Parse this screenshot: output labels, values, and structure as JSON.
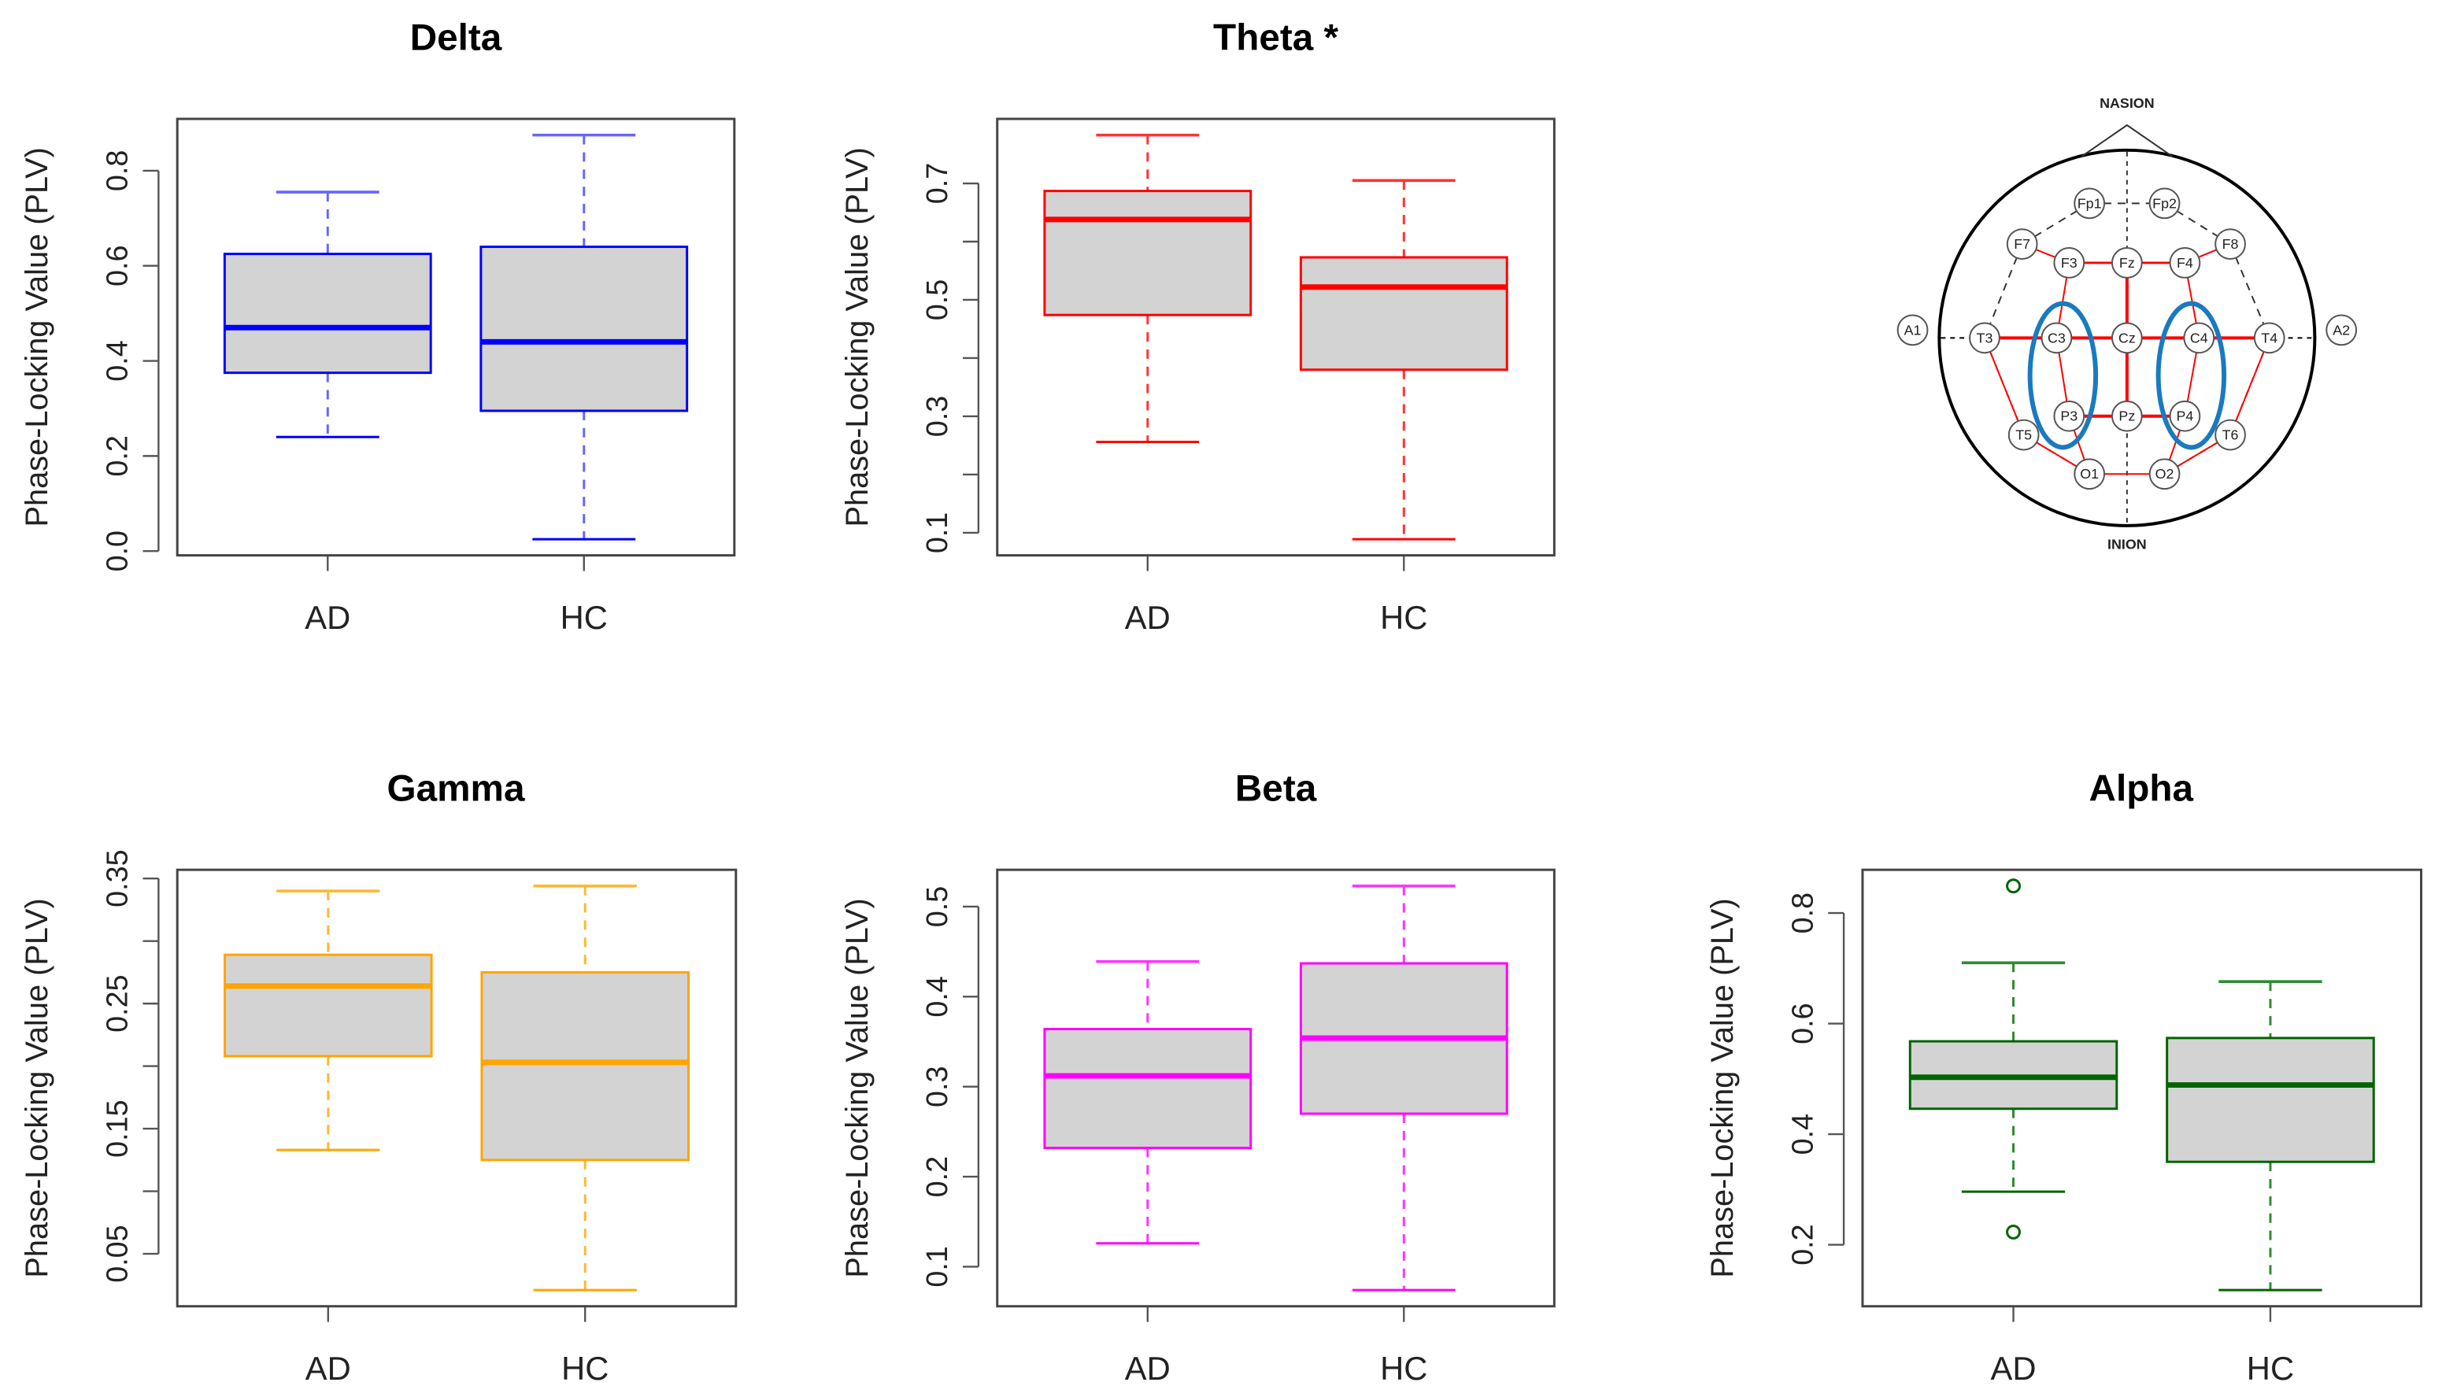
{
  "chart_data": [
    {
      "type": "box",
      "title": "Delta",
      "ylabel": "Phase-Locking Value (PLV)",
      "color": "#0000ff",
      "whisker_color": "#6666ff",
      "categories": [
        "AD",
        "HC"
      ],
      "yticks": [
        0.0,
        0.2,
        0.4,
        0.6,
        0.8
      ],
      "ytick_labels": [
        "0.0",
        "0.2",
        "0.4",
        "0.6",
        "0.8"
      ],
      "boxes": [
        {
          "min": 0.24,
          "q1": 0.375,
          "median": 0.47,
          "q3": 0.625,
          "max": 0.755,
          "outliers": []
        },
        {
          "min": 0.025,
          "q1": 0.295,
          "median": 0.44,
          "q3": 0.64,
          "max": 0.875,
          "outliers": []
        }
      ]
    },
    {
      "type": "box",
      "title": "Theta *",
      "ylabel": "Phase-Locking Value (PLV)",
      "color": "#ff0000",
      "whisker_color": "#ff3333",
      "categories": [
        "AD",
        "HC"
      ],
      "yticks": [
        0.1,
        0.2,
        0.3,
        0.4,
        0.5,
        0.6,
        0.7
      ],
      "ytick_labels": [
        "0.1",
        "",
        "0.3",
        "",
        "0.5",
        "",
        "0.7"
      ],
      "boxes": [
        {
          "min": 0.256,
          "q1": 0.474,
          "median": 0.638,
          "q3": 0.687,
          "max": 0.783,
          "outliers": []
        },
        {
          "min": 0.089,
          "q1": 0.38,
          "median": 0.522,
          "q3": 0.573,
          "max": 0.705,
          "outliers": []
        }
      ]
    },
    {
      "type": "box",
      "title": "Gamma",
      "ylabel": "Phase-Locking Value (PLV)",
      "color": "#ffa500",
      "whisker_color": "#ffb733",
      "categories": [
        "AD",
        "HC"
      ],
      "yticks": [
        0.05,
        0.1,
        0.15,
        0.2,
        0.25,
        0.3,
        0.35
      ],
      "ytick_labels": [
        "0.05",
        "",
        "0.15",
        "",
        "0.25",
        "",
        "0.35"
      ],
      "boxes": [
        {
          "min": 0.133,
          "q1": 0.208,
          "median": 0.264,
          "q3": 0.289,
          "max": 0.34,
          "outliers": []
        },
        {
          "min": 0.021,
          "q1": 0.125,
          "median": 0.203,
          "q3": 0.275,
          "max": 0.344,
          "outliers": []
        }
      ]
    },
    {
      "type": "box",
      "title": "Beta",
      "ylabel": "Phase-Locking Value (PLV)",
      "color": "#ff00ff",
      "whisker_color": "#ff33ff",
      "categories": [
        "AD",
        "HC"
      ],
      "yticks": [
        0.1,
        0.2,
        0.3,
        0.4,
        0.5
      ],
      "ytick_labels": [
        "0.1",
        "0.2",
        "0.3",
        "0.4",
        "0.5"
      ],
      "boxes": [
        {
          "min": 0.126,
          "q1": 0.232,
          "median": 0.312,
          "q3": 0.364,
          "max": 0.439,
          "outliers": []
        },
        {
          "min": 0.074,
          "q1": 0.27,
          "median": 0.354,
          "q3": 0.437,
          "max": 0.523,
          "outliers": []
        }
      ]
    },
    {
      "type": "box",
      "title": "Alpha",
      "ylabel": "Phase-Locking Value (PLV)",
      "color": "#006400",
      "whisker_color": "#2e8b2e",
      "categories": [
        "AD",
        "HC"
      ],
      "yticks": [
        0.2,
        0.4,
        0.6,
        0.8
      ],
      "ytick_labels": [
        "0.2",
        "0.4",
        "0.6",
        "0.8"
      ],
      "boxes": [
        {
          "min": 0.296,
          "q1": 0.446,
          "median": 0.503,
          "q3": 0.568,
          "max": 0.71,
          "outliers": [
            0.849,
            0.223
          ]
        },
        {
          "min": 0.118,
          "q1": 0.35,
          "median": 0.489,
          "q3": 0.574,
          "max": 0.676,
          "outliers": []
        }
      ]
    }
  ],
  "head_diagram": {
    "top_label": "NASION",
    "bottom_label": "INION",
    "electrodes": [
      "Fp1",
      "Fp2",
      "F7",
      "F3",
      "Fz",
      "F4",
      "F8",
      "A1",
      "T3",
      "C3",
      "Cz",
      "C4",
      "T4",
      "A2",
      "T5",
      "P3",
      "Pz",
      "P4",
      "T6",
      "O1",
      "O2"
    ],
    "connection_color": "#ff0000",
    "highlight_color": "#1a7abf",
    "highlighted_groups": [
      [
        "C3",
        "P3"
      ],
      [
        "C4",
        "P4"
      ]
    ]
  }
}
